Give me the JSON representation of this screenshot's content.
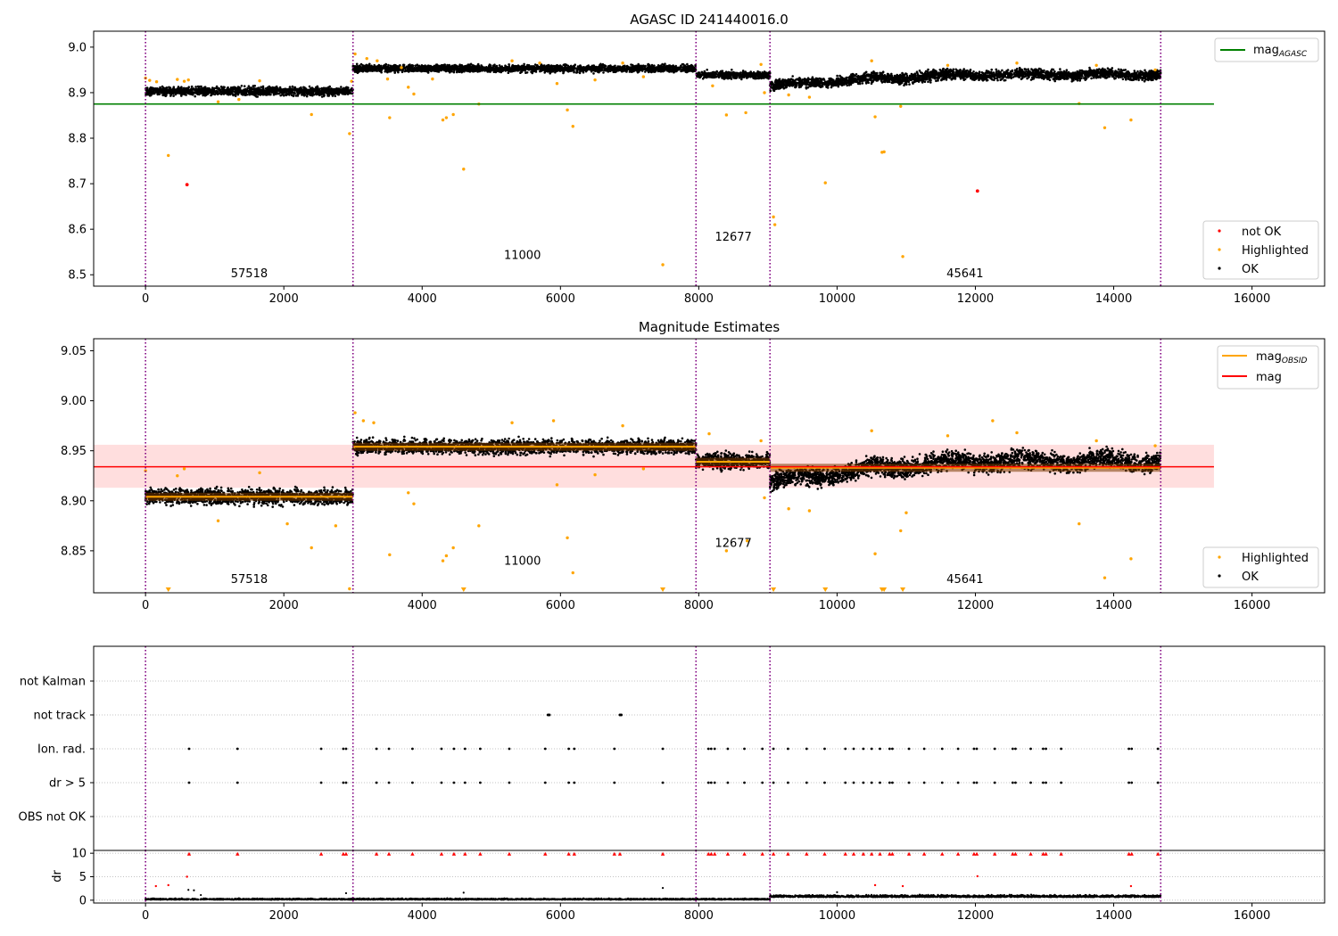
{
  "colors": {
    "ok": "#000000",
    "highlighted": "#ffa500",
    "not_ok": "#ff0000",
    "mag_agasc": "#008000",
    "mag_obsid": "#ffa500",
    "mag": "#ff0000",
    "mag_band": "#ffd6d6",
    "obsid_line": "#800080",
    "obsid_line_2": "#0000ff",
    "grid": "#b0b0b0"
  },
  "chart_data": [
    {
      "id": "top",
      "type": "scatter",
      "title": "AGASC ID 241440016.0",
      "xlim": [
        -750,
        17050
      ],
      "ylim": [
        8.475,
        9.035
      ],
      "xticks": [
        0,
        2000,
        4000,
        6000,
        8000,
        10000,
        12000,
        14000,
        16000
      ],
      "yticks": [
        8.5,
        8.6,
        8.7,
        8.8,
        8.9,
        9.0
      ],
      "ytick_decimals": 1,
      "legend_upper": "top-right",
      "legend_lower": "bottom-right",
      "legend_upper_entries": [
        {
          "key": "mag_agasc",
          "base": "mag",
          "sub": "AGASC"
        }
      ],
      "legend_lower_entries": [
        {
          "key": "not_ok",
          "label": "not OK"
        },
        {
          "key": "highlighted",
          "label": "Highlighted"
        },
        {
          "key": "ok",
          "label": "OK"
        }
      ],
      "hline": {
        "key": "mag_agasc",
        "y": 8.875,
        "x_range": [
          -750,
          15450
        ]
      },
      "obsid_boundaries": [
        0,
        3000,
        7960,
        9030,
        14680
      ],
      "obsid_labels": [
        {
          "text": "57518",
          "x": 1500,
          "y": 8.495
        },
        {
          "text": "11000",
          "x": 5450,
          "y": 8.535
        },
        {
          "text": "12677",
          "x": 8500,
          "y": 8.575
        },
        {
          "text": "45641",
          "x": 11850,
          "y": 8.495
        }
      ],
      "segments": [
        {
          "x0": 0,
          "x1": 3000,
          "center": 8.903,
          "spread": 0.012
        },
        {
          "x0": 3000,
          "x1": 7960,
          "center": 8.953,
          "spread": 0.01
        },
        {
          "x0": 7960,
          "x1": 9030,
          "center": 8.939,
          "spread": 0.01
        },
        {
          "x0": 9030,
          "x1": 14680,
          "center": 8.931,
          "spread": 0.014,
          "trend": [
            8.915,
            8.94
          ]
        }
      ],
      "highlighted_points": [
        [
          0,
          8.932
        ],
        [
          60,
          8.927
        ],
        [
          160,
          8.924
        ],
        [
          330,
          8.762
        ],
        [
          460,
          8.929
        ],
        [
          560,
          8.925
        ],
        [
          620,
          8.928
        ],
        [
          1050,
          8.88
        ],
        [
          1350,
          8.885
        ],
        [
          1650,
          8.926
        ],
        [
          2400,
          8.852
        ],
        [
          2950,
          8.81
        ],
        [
          2980,
          8.925
        ],
        [
          3030,
          8.985
        ],
        [
          3200,
          8.975
        ],
        [
          3350,
          8.97
        ],
        [
          3500,
          8.93
        ],
        [
          3530,
          8.845
        ],
        [
          3700,
          8.955
        ],
        [
          3800,
          8.912
        ],
        [
          3880,
          8.897
        ],
        [
          4150,
          8.93
        ],
        [
          4300,
          8.84
        ],
        [
          4350,
          8.845
        ],
        [
          4450,
          8.852
        ],
        [
          4600,
          8.732
        ],
        [
          4820,
          8.875
        ],
        [
          5300,
          8.97
        ],
        [
          5700,
          8.965
        ],
        [
          5950,
          8.92
        ],
        [
          6100,
          8.862
        ],
        [
          6180,
          8.826
        ],
        [
          6500,
          8.928
        ],
        [
          6900,
          8.965
        ],
        [
          7200,
          8.935
        ],
        [
          7480,
          8.522
        ],
        [
          8200,
          8.915
        ],
        [
          8400,
          8.851
        ],
        [
          8680,
          8.856
        ],
        [
          8900,
          8.962
        ],
        [
          8950,
          8.9
        ],
        [
          9080,
          8.627
        ],
        [
          9100,
          8.61
        ],
        [
          9300,
          8.895
        ],
        [
          9600,
          8.89
        ],
        [
          9830,
          8.702
        ],
        [
          10500,
          8.97
        ],
        [
          10550,
          8.847
        ],
        [
          10650,
          8.769
        ],
        [
          10680,
          8.77
        ],
        [
          10920,
          8.87
        ],
        [
          10950,
          8.54
        ],
        [
          11600,
          8.96
        ],
        [
          12600,
          8.965
        ],
        [
          13500,
          8.876
        ],
        [
          13750,
          8.96
        ],
        [
          13870,
          8.823
        ],
        [
          14250,
          8.84
        ],
        [
          14600,
          8.95
        ]
      ],
      "not_ok_points": [
        [
          600,
          8.698
        ],
        [
          12030,
          8.684
        ]
      ]
    },
    {
      "id": "middle",
      "type": "scatter",
      "title": "Magnitude Estimates",
      "xlim": [
        -750,
        17050
      ],
      "ylim": [
        8.808,
        9.062
      ],
      "xticks": [
        0,
        2000,
        4000,
        6000,
        8000,
        10000,
        12000,
        14000,
        16000
      ],
      "yticks": [
        8.85,
        8.9,
        8.95,
        9.0,
        9.05
      ],
      "ytick_decimals": 2,
      "legend_upper": "top-right",
      "legend_lower": "bottom-right",
      "legend_upper_entries": [
        {
          "key": "mag_obsid",
          "base": "mag",
          "sub": "OBSID"
        },
        {
          "key": "mag",
          "base": "mag",
          "sub": ""
        }
      ],
      "legend_lower_entries": [
        {
          "key": "highlighted",
          "label": "Highlighted"
        },
        {
          "key": "ok",
          "label": "OK"
        }
      ],
      "mag_line": {
        "y": 8.934,
        "band": [
          8.913,
          8.956
        ],
        "x_range": [
          -750,
          15450
        ]
      },
      "obsid_boundaries": [
        0,
        3000,
        7960,
        9030,
        14680
      ],
      "obsid_labels": [
        {
          "text": "57518",
          "x": 1500,
          "y": 8.818
        },
        {
          "text": "11000",
          "x": 5450,
          "y": 8.836
        },
        {
          "text": "12677",
          "x": 8500,
          "y": 8.854
        },
        {
          "text": "45641",
          "x": 11850,
          "y": 8.818
        }
      ],
      "segments": [
        {
          "x0": 0,
          "x1": 3000,
          "center": 8.904,
          "spread": 0.01,
          "mag_obsid": 8.904
        },
        {
          "x0": 3000,
          "x1": 7960,
          "center": 8.954,
          "spread": 0.009,
          "mag_obsid": 8.954
        },
        {
          "x0": 7960,
          "x1": 9030,
          "center": 8.94,
          "spread": 0.01,
          "mag_obsid": 8.939
        },
        {
          "x0": 9030,
          "x1": 14680,
          "center": 8.932,
          "spread": 0.012,
          "trend": [
            8.918,
            8.94
          ],
          "mag_obsid": 8.933
        }
      ],
      "highlighted_points": [
        [
          0,
          8.93
        ],
        [
          330,
          8.81
        ],
        [
          460,
          8.925
        ],
        [
          560,
          8.932
        ],
        [
          1050,
          8.88
        ],
        [
          1650,
          8.928
        ],
        [
          2050,
          8.877
        ],
        [
          2400,
          8.853
        ],
        [
          2750,
          8.875
        ],
        [
          2950,
          8.812
        ],
        [
          3030,
          8.988
        ],
        [
          3150,
          8.98
        ],
        [
          3300,
          8.978
        ],
        [
          3530,
          8.846
        ],
        [
          3800,
          8.908
        ],
        [
          3880,
          8.897
        ],
        [
          4300,
          8.84
        ],
        [
          4350,
          8.845
        ],
        [
          4450,
          8.853
        ],
        [
          4600,
          8.81
        ],
        [
          4820,
          8.875
        ],
        [
          5300,
          8.978
        ],
        [
          5900,
          8.98
        ],
        [
          5950,
          8.916
        ],
        [
          6100,
          8.863
        ],
        [
          6180,
          8.828
        ],
        [
          6500,
          8.926
        ],
        [
          6900,
          8.975
        ],
        [
          7200,
          8.932
        ],
        [
          7480,
          8.81
        ],
        [
          8150,
          8.967
        ],
        [
          8400,
          8.85
        ],
        [
          8700,
          8.86
        ],
        [
          8900,
          8.96
        ],
        [
          8950,
          8.903
        ],
        [
          9080,
          8.81
        ],
        [
          9300,
          8.892
        ],
        [
          9600,
          8.89
        ],
        [
          9830,
          8.81
        ],
        [
          10500,
          8.97
        ],
        [
          10550,
          8.847
        ],
        [
          10650,
          8.81
        ],
        [
          10680,
          8.81
        ],
        [
          10920,
          8.87
        ],
        [
          10950,
          8.81
        ],
        [
          11000,
          8.888
        ],
        [
          11600,
          8.965
        ],
        [
          12250,
          8.98
        ],
        [
          12600,
          8.968
        ],
        [
          13500,
          8.877
        ],
        [
          13750,
          8.96
        ],
        [
          13870,
          8.823
        ],
        [
          14250,
          8.842
        ],
        [
          14600,
          8.955
        ]
      ]
    },
    {
      "id": "flags",
      "type": "scatter",
      "title": "",
      "xlim": [
        -750,
        17050
      ],
      "categories": [
        "OBS not OK",
        "dr > 5",
        "Ion. rad.",
        "not track",
        "not Kalman"
      ],
      "obsid_boundaries": [
        0,
        3000,
        7960,
        9030,
        14680
      ],
      "flag_x": [
        630,
        1330,
        2540,
        2860,
        2900,
        3340,
        3520,
        3860,
        4280,
        4460,
        4620,
        4840,
        5260,
        5780,
        6120,
        6200,
        6780,
        7480,
        8140,
        8180,
        8230,
        8420,
        8660,
        8920,
        9080,
        9290,
        9560,
        9820,
        10120,
        10240,
        10380,
        10500,
        10620,
        10760,
        10800,
        11040,
        11260,
        11520,
        11750,
        11980,
        12020,
        12280,
        12540,
        12580,
        12800,
        12980,
        13020,
        13240,
        14220,
        14260,
        14640
      ],
      "not_track_x": [
        5820,
        5840,
        6860,
        6880
      ]
    },
    {
      "id": "dr",
      "type": "scatter",
      "title": "",
      "ylabel": "dr",
      "xlim": [
        -750,
        17050
      ],
      "ylim": [
        -0.6,
        10.6
      ],
      "xticks": [
        0,
        2000,
        4000,
        6000,
        8000,
        10000,
        12000,
        14000,
        16000
      ],
      "yticks": [
        0,
        5,
        10
      ],
      "obsid_boundaries": [
        0,
        3000,
        7960,
        9030,
        14680
      ],
      "segments": [
        {
          "x0": 0,
          "x1": 9030,
          "level": 0.2,
          "spread": 0.18
        },
        {
          "x0": 9030,
          "x1": 14680,
          "level": 0.8,
          "spread": 0.35
        }
      ],
      "red_markers_at_10": [
        630,
        1330,
        2540,
        2860,
        2900,
        3340,
        3520,
        3860,
        4280,
        4460,
        4620,
        4840,
        5260,
        5780,
        6120,
        6200,
        6780,
        6860,
        7480,
        8140,
        8180,
        8230,
        8420,
        8660,
        8920,
        9080,
        9290,
        9560,
        9820,
        10120,
        10240,
        10380,
        10500,
        10620,
        10760,
        10800,
        11040,
        11260,
        11520,
        11750,
        11980,
        12020,
        12280,
        12540,
        12580,
        12800,
        12980,
        13020,
        13240,
        14220,
        14260,
        14640
      ],
      "red_points": [
        [
          150,
          3.0
        ],
        [
          330,
          3.2
        ],
        [
          600,
          5.0
        ],
        [
          10550,
          3.2
        ],
        [
          10950,
          3.0
        ],
        [
          12030,
          5.1
        ],
        [
          14250,
          3.0
        ]
      ],
      "black_points": [
        [
          620,
          2.2
        ],
        [
          700,
          2.1
        ],
        [
          800,
          1.1
        ],
        [
          2900,
          1.5
        ],
        [
          4600,
          1.6
        ],
        [
          7480,
          2.6
        ],
        [
          10000,
          1.7
        ]
      ]
    }
  ]
}
